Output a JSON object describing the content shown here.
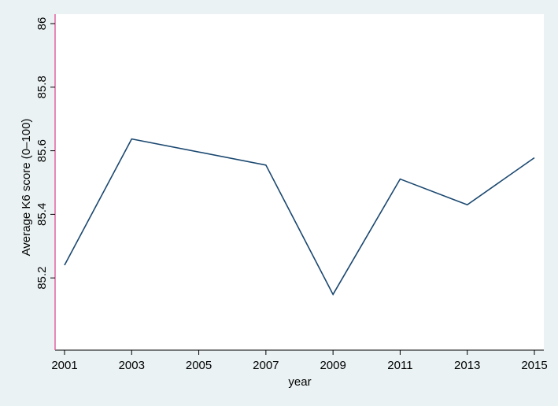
{
  "chart_data": {
    "type": "line",
    "xlabel": "year",
    "ylabel": "Average K6 score (0–100)",
    "x": [
      2001,
      2003,
      2005,
      2007,
      2009,
      2011,
      2013,
      2015
    ],
    "x_ticks": [
      "2001",
      "2003",
      "2005",
      "2007",
      "2009",
      "2011",
      "2013",
      "2015"
    ],
    "y_ticks": [
      "85.2",
      "85.4",
      "85.6",
      "85.8",
      "86"
    ],
    "xlim": [
      2001,
      2015
    ],
    "ylim": [
      85.0,
      86.0
    ],
    "grid": true,
    "series": [
      {
        "x": [
          2001,
          2003,
          2007,
          2009,
          2011,
          2013,
          2015
        ],
        "values": [
          85.24,
          85.637,
          85.555,
          85.148,
          85.511,
          85.43,
          85.578
        ],
        "color": "#1a476f"
      }
    ]
  },
  "colors": {
    "background": "#eaf2f3",
    "plot_background": "#ffffff",
    "y_axis_line": "#e0589b"
  }
}
